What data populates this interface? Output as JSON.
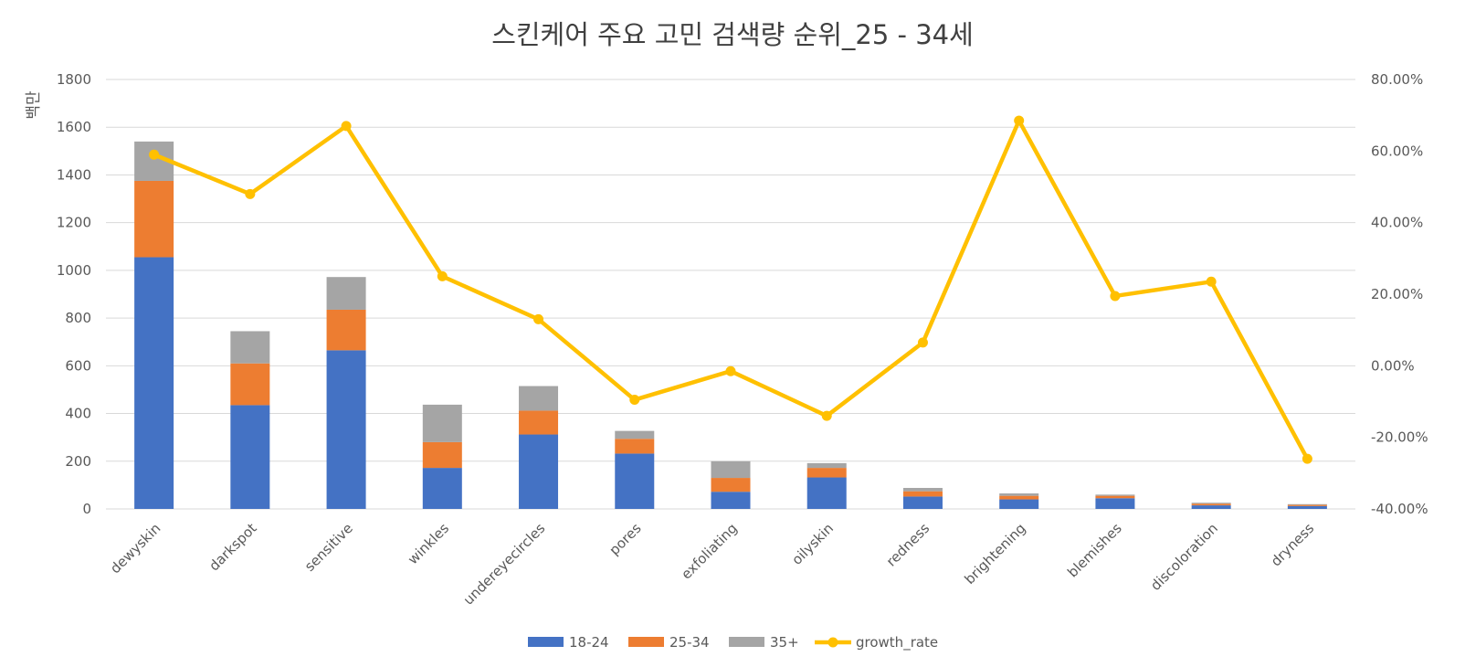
{
  "chart_data": {
    "type": "bar",
    "stacked": true,
    "title": "스킨케어 주요 고민 검색량 순위_25 - 34세",
    "ylabel": "백만",
    "y2label": "",
    "ylim": [
      0,
      1800
    ],
    "yticks": [
      0,
      200,
      400,
      600,
      800,
      1000,
      1200,
      1400,
      1600,
      1800
    ],
    "y2lim": [
      -0.4,
      0.8
    ],
    "y2ticks": [
      "-40.00%",
      "-20.00%",
      "0.00%",
      "20.00%",
      "40.00%",
      "60.00%",
      "80.00%"
    ],
    "grid": true,
    "legend_position": "bottom",
    "categories": [
      "dewyskin",
      "darkspot",
      "sensitive",
      "winkles",
      "undereyecircles",
      "pores",
      "exfoliating",
      "oilyskin",
      "redness",
      "brightening",
      "blemishes",
      "discoloration",
      "dryness"
    ],
    "series": [
      {
        "name": "18-24",
        "type": "bar",
        "axis": "left",
        "color": "#4472C4",
        "values": [
          1055,
          435,
          665,
          172,
          312,
          232,
          72,
          132,
          52,
          40,
          45,
          15,
          12
        ]
      },
      {
        "name": "25-34",
        "type": "bar",
        "axis": "left",
        "color": "#ED7D31",
        "values": [
          320,
          175,
          170,
          108,
          100,
          62,
          58,
          40,
          22,
          15,
          10,
          7,
          5
        ]
      },
      {
        "name": "35+",
        "type": "bar",
        "axis": "left",
        "color": "#A5A5A5",
        "values": [
          165,
          135,
          137,
          157,
          103,
          33,
          70,
          20,
          14,
          10,
          5,
          4,
          3
        ]
      },
      {
        "name": "growth_rate",
        "type": "line",
        "axis": "right",
        "color": "#FFC000",
        "values": [
          0.59,
          0.48,
          0.67,
          0.25,
          0.13,
          -0.095,
          -0.015,
          -0.14,
          0.065,
          0.685,
          0.195,
          0.235,
          -0.26
        ]
      }
    ]
  }
}
